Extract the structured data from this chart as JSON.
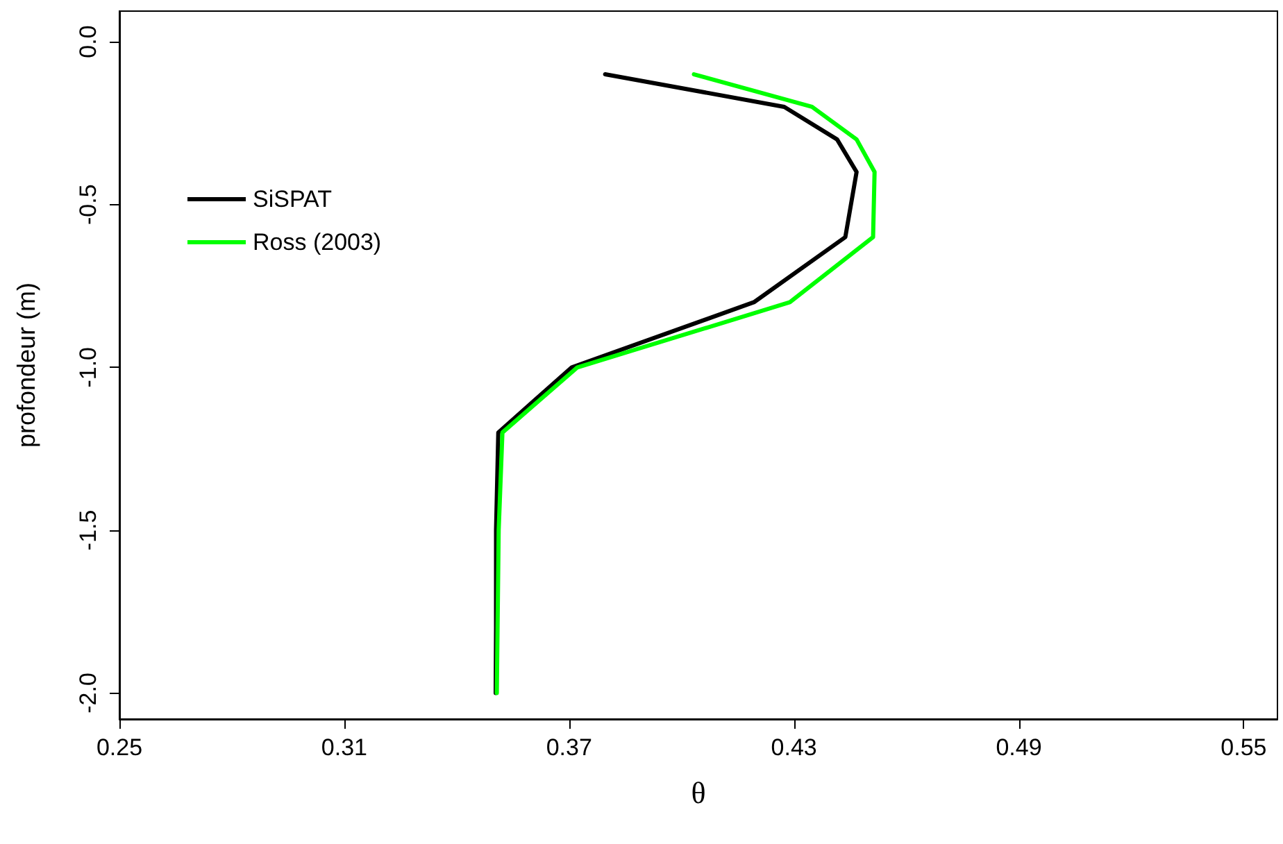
{
  "chart_data": {
    "type": "line",
    "xlabel": "θ",
    "ylabel": "profondeur (m)",
    "xlim": [
      0.25,
      0.559
    ],
    "ylim": [
      -2.08,
      0.094
    ],
    "xticks": [
      0.25,
      0.31,
      0.37,
      0.43,
      0.49,
      0.55
    ],
    "yticks": [
      {
        "value": 0,
        "label": "0.0"
      },
      {
        "value": -0.5,
        "label": "-0.5"
      },
      {
        "value": -1,
        "label": "-1.0"
      },
      {
        "value": -1.5,
        "label": "-1.5"
      },
      {
        "value": -2,
        "label": "-2.0"
      }
    ],
    "grid": false,
    "legend": "top left",
    "marker": "none",
    "line_style": "solid",
    "series": [
      {
        "name": "SiSPAT",
        "color": "#000000",
        "x": [
          0.3796,
          0.4274,
          0.4415,
          0.4467,
          0.4437,
          0.4193,
          0.3707,
          0.3511,
          0.3505,
          0.3505,
          0.3504
        ],
        "values": [
          -0.1,
          -0.2,
          -0.3,
          -0.4,
          -0.6,
          -0.8,
          -1.0,
          -1.2,
          -1.5,
          -1.8,
          -2.0
        ]
      },
      {
        "name": "Ross (2003)",
        "color": "#00ff00",
        "x": [
          0.4033,
          0.4348,
          0.4467,
          0.4515,
          0.4511,
          0.4289,
          0.3722,
          0.3522,
          0.3512,
          0.3509,
          0.3507
        ],
        "values": [
          -0.1,
          -0.2,
          -0.3,
          -0.4,
          -0.6,
          -0.8,
          -1.0,
          -1.2,
          -1.5,
          -1.8,
          -2.0
        ]
      }
    ]
  }
}
